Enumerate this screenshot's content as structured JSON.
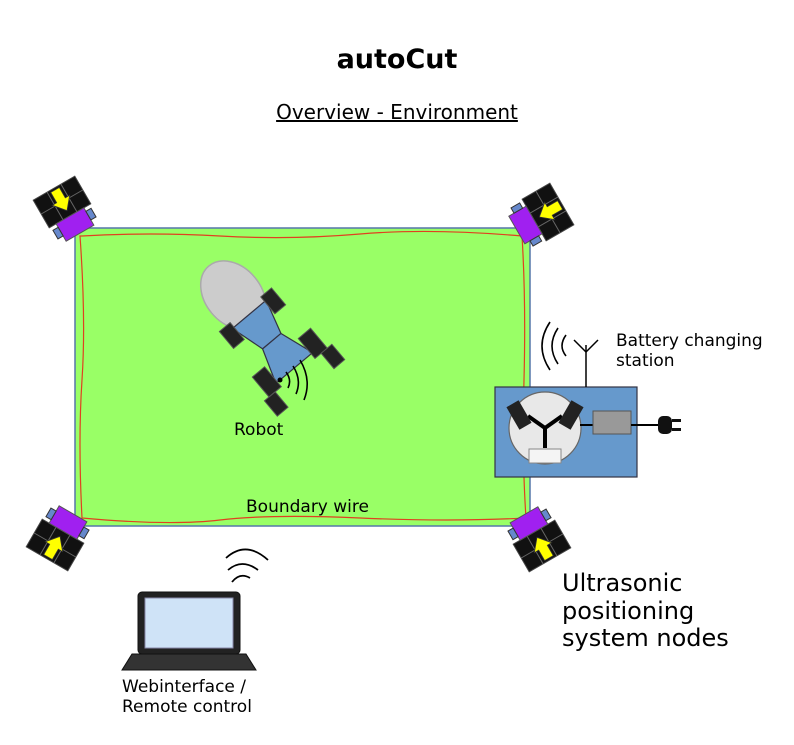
{
  "title": "autoCut",
  "subtitle": "Overview - Environment",
  "labels": {
    "robot": "Robot",
    "boundary_wire": "Boundary wire",
    "battery_station_line1": "Battery changing",
    "battery_station_line2": "station",
    "nodes_line1": "Ultrasonic",
    "nodes_line2": "positioning",
    "nodes_line3": "system nodes",
    "web_line1": "Webinterface /",
    "web_line2": "Remote control"
  },
  "colors": {
    "lawn": "#99ff66",
    "boundary_wire": "#e04020",
    "station": "#6699cc",
    "robot_body": "#6699cc",
    "node_purple": "#a020f0",
    "node_arrow": "#ffff00"
  },
  "icons": [
    "robot-icon",
    "laptop-icon",
    "antenna-icon",
    "power-plug-icon",
    "ultrasonic-node-icon",
    "signal-waves-icon"
  ]
}
